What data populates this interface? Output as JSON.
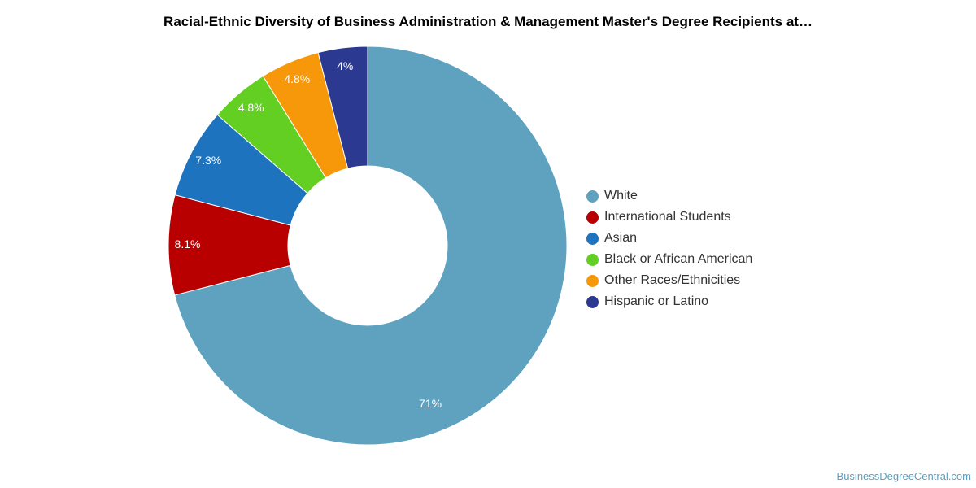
{
  "chart_data": {
    "type": "pie",
    "title": "Racial-Ethnic Diversity of Business Administration & Management Master's Degree Recipients at…",
    "donut": true,
    "legend_position": "right",
    "slices": [
      {
        "name": "White",
        "value": 71,
        "label": "71%",
        "color": "#5ea2c0"
      },
      {
        "name": "International Students",
        "value": 8.1,
        "label": "8.1%",
        "color": "#b80000"
      },
      {
        "name": "Asian",
        "value": 7.3,
        "label": "7.3%",
        "color": "#1e73be"
      },
      {
        "name": "Black or African American",
        "value": 4.8,
        "label": "4.8%",
        "color": "#62cf22"
      },
      {
        "name": "Other Races/Ethnicities",
        "value": 4.8,
        "label": "4.8%",
        "color": "#f7980b"
      },
      {
        "name": "Hispanic or Latino",
        "value": 4,
        "label": "4%",
        "color": "#2c3990"
      }
    ]
  },
  "watermark": "BusinessDegreeCentral.com"
}
